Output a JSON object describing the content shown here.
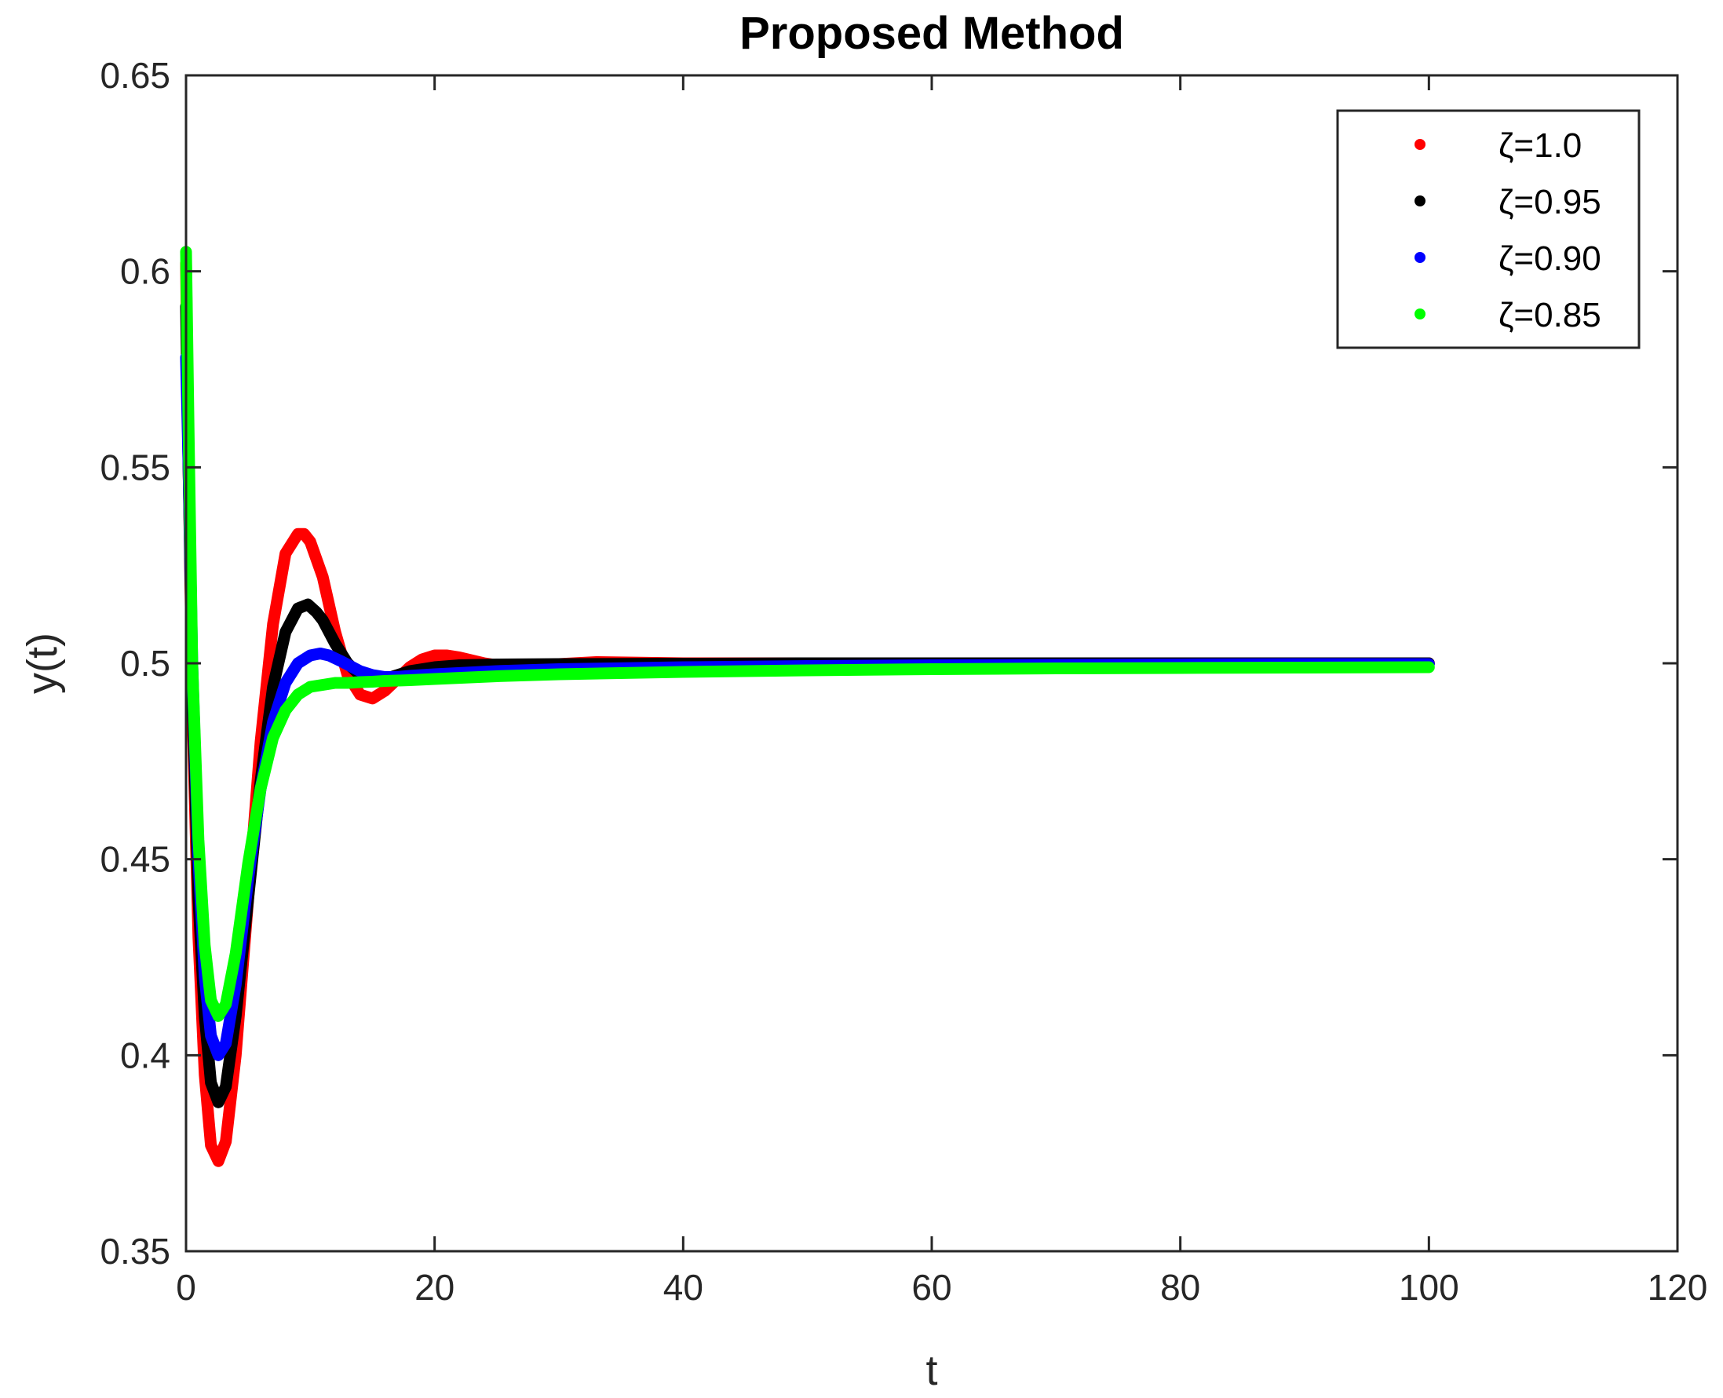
{
  "chart_data": {
    "type": "scatter",
    "title": "Proposed Method",
    "xlabel": "t",
    "ylabel": "y(t)",
    "xlim": [
      0,
      120
    ],
    "ylim": [
      0.35,
      0.65
    ],
    "xticks": [
      0,
      20,
      40,
      60,
      80,
      100,
      120
    ],
    "yticks": [
      0.35,
      0.4,
      0.45,
      0.5,
      0.55,
      0.6,
      0.65
    ],
    "xtick_labels": [
      "0",
      "20",
      "40",
      "60",
      "80",
      "100",
      "120"
    ],
    "ytick_labels": [
      "0.35",
      "0.4",
      "0.45",
      "0.5",
      "0.55",
      "0.6",
      "0.65"
    ],
    "grid": false,
    "box": true,
    "legend_position": "top-right",
    "series": [
      {
        "name": "ζ=1.0",
        "color": "#ff0000",
        "x": [
          0,
          0.2,
          0.5,
          1,
          1.5,
          2,
          2.6,
          3.2,
          4,
          5,
          6,
          7,
          8,
          9,
          9.5,
          10,
          11,
          12,
          13,
          14,
          15,
          16,
          17,
          18,
          19,
          20,
          21,
          22,
          24,
          26,
          28,
          30,
          33,
          40,
          50,
          60,
          70,
          80,
          90,
          100
        ],
        "y": [
          0.602,
          0.55,
          0.49,
          0.43,
          0.395,
          0.377,
          0.373,
          0.378,
          0.4,
          0.44,
          0.48,
          0.51,
          0.528,
          0.533,
          0.533,
          0.531,
          0.522,
          0.508,
          0.497,
          0.492,
          0.491,
          0.493,
          0.496,
          0.499,
          0.501,
          0.502,
          0.502,
          0.5015,
          0.5,
          0.499,
          0.4995,
          0.4998,
          0.5003,
          0.5,
          0.5,
          0.5,
          0.5,
          0.5,
          0.5,
          0.5
        ]
      },
      {
        "name": "ζ=0.95",
        "color": "#000000",
        "x": [
          0,
          0.2,
          0.5,
          1,
          1.5,
          2,
          2.6,
          3.2,
          4,
          5,
          6,
          7,
          8,
          9,
          9.8,
          10.5,
          11,
          12,
          13,
          14,
          15,
          16,
          17,
          18,
          20,
          22,
          25,
          30,
          40,
          50,
          60,
          70,
          80,
          90,
          100
        ],
        "y": [
          0.591,
          0.55,
          0.495,
          0.44,
          0.41,
          0.393,
          0.388,
          0.392,
          0.41,
          0.44,
          0.47,
          0.494,
          0.508,
          0.514,
          0.515,
          0.513,
          0.511,
          0.505,
          0.5,
          0.497,
          0.496,
          0.496,
          0.497,
          0.498,
          0.499,
          0.4995,
          0.4997,
          0.4998,
          0.4999,
          0.5,
          0.5,
          0.5,
          0.5,
          0.5,
          0.5
        ]
      },
      {
        "name": "ζ=0.90",
        "color": "#0000ff",
        "x": [
          0,
          0.2,
          0.5,
          1,
          1.5,
          2,
          2.6,
          3.2,
          4,
          5,
          6,
          7,
          8,
          9,
          10,
          10.8,
          11.5,
          12.5,
          14,
          15,
          16,
          17,
          18,
          20,
          25,
          30,
          40,
          50,
          60,
          70,
          80,
          90,
          100
        ],
        "y": [
          0.578,
          0.55,
          0.5,
          0.45,
          0.42,
          0.405,
          0.4,
          0.403,
          0.418,
          0.445,
          0.468,
          0.485,
          0.495,
          0.5,
          0.502,
          0.5025,
          0.502,
          0.5005,
          0.498,
          0.497,
          0.4965,
          0.4965,
          0.4968,
          0.4972,
          0.498,
          0.4985,
          0.499,
          0.4993,
          0.4995,
          0.4996,
          0.4997,
          0.4998,
          0.4998
        ]
      },
      {
        "name": "ζ=0.85",
        "color": "#00ff00",
        "x": [
          0,
          0.2,
          0.5,
          1,
          1.5,
          2,
          2.6,
          3.2,
          4,
          5,
          6,
          7,
          8,
          9,
          10,
          11,
          12,
          13,
          14,
          15,
          16,
          17,
          18,
          20,
          25,
          30,
          40,
          50,
          60,
          70,
          80,
          90,
          100
        ],
        "y": [
          0.605,
          0.56,
          0.5,
          0.455,
          0.428,
          0.414,
          0.41,
          0.413,
          0.426,
          0.449,
          0.468,
          0.481,
          0.488,
          0.492,
          0.494,
          0.4945,
          0.495,
          0.495,
          0.4952,
          0.4953,
          0.4955,
          0.4956,
          0.4957,
          0.496,
          0.4967,
          0.4972,
          0.4978,
          0.4982,
          0.4985,
          0.4987,
          0.4988,
          0.4989,
          0.499
        ]
      }
    ]
  }
}
